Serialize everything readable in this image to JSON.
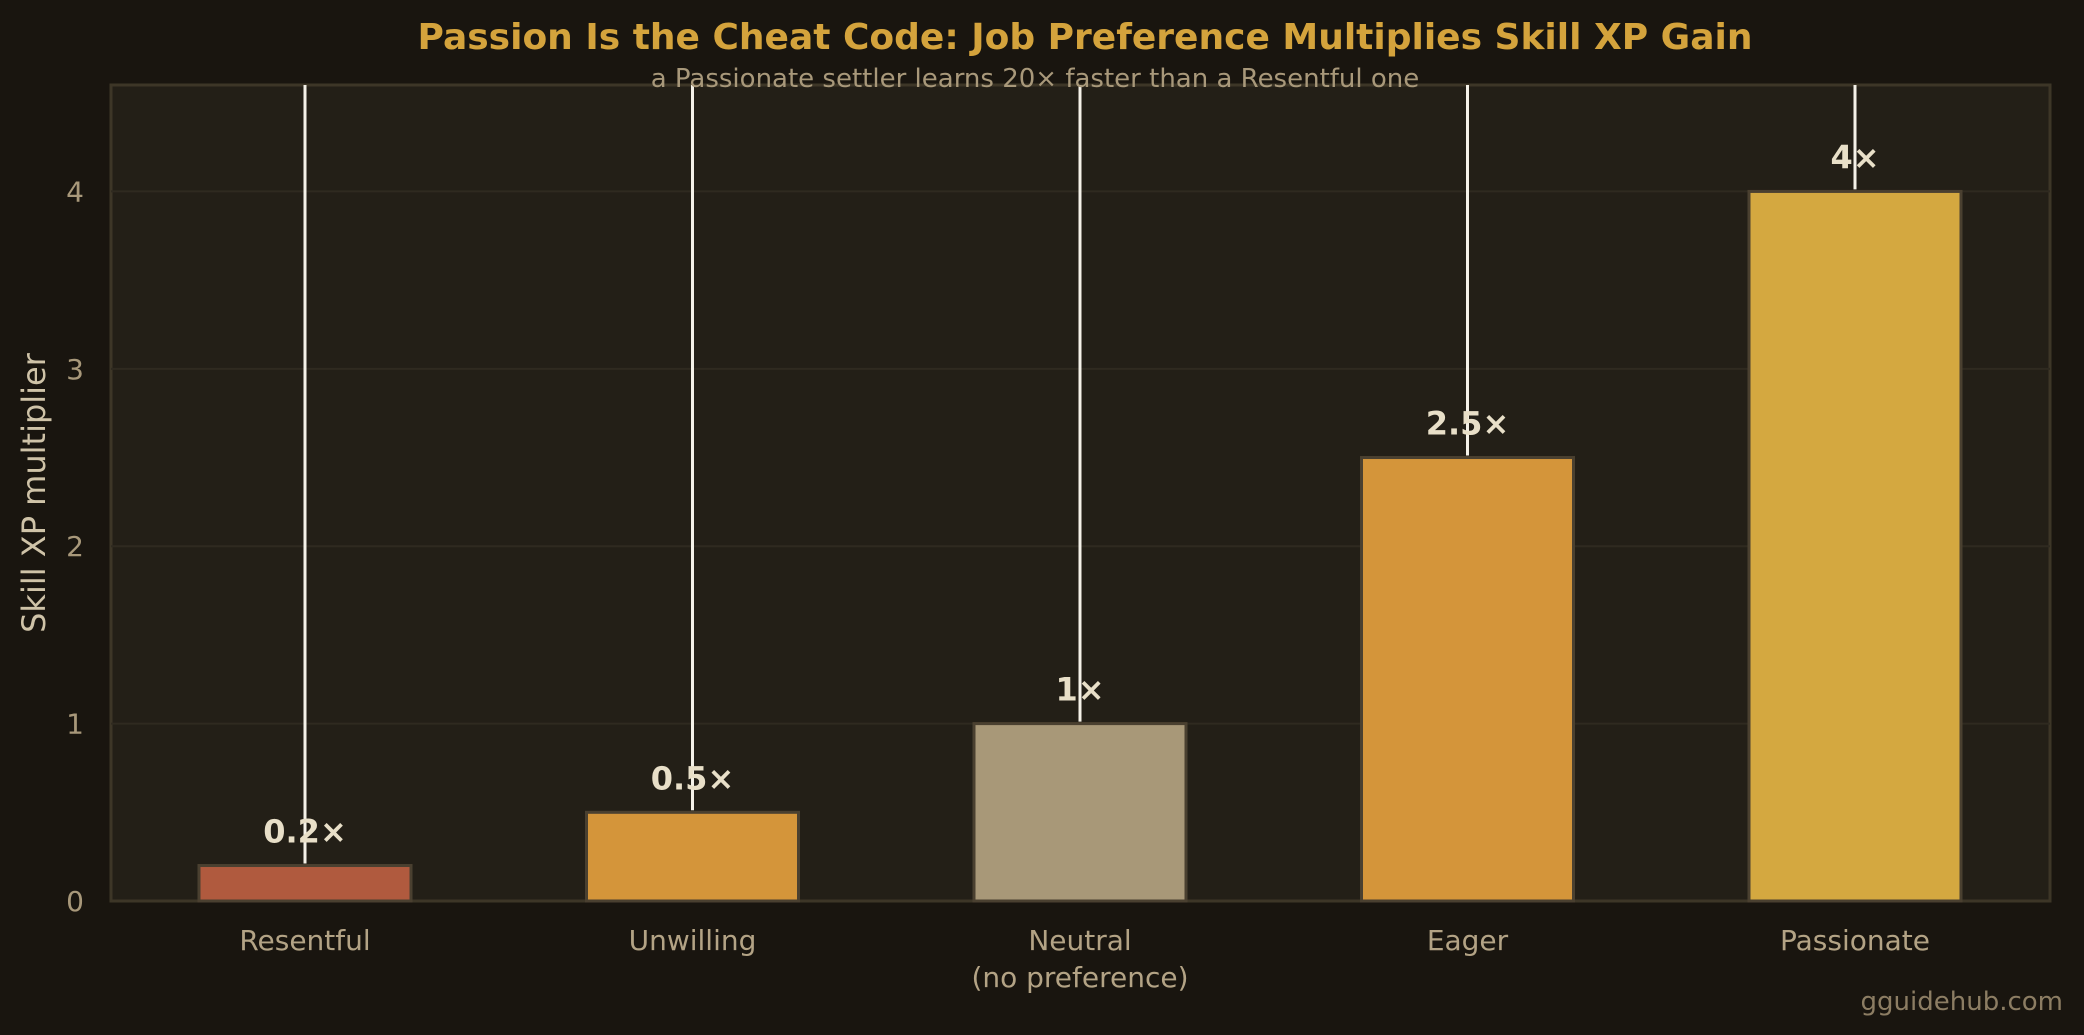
{
  "chart_data": {
    "type": "bar",
    "title": "Passion Is the Cheat Code: Job Preference Multiplies Skill XP Gain",
    "subtitle": "a Passionate settler learns 20× faster than a Resentful one",
    "ylabel": "Skill XP multiplier",
    "xlabel": "",
    "categories": [
      [
        "Resentful"
      ],
      [
        "Unwilling"
      ],
      [
        "Neutral",
        "(no preference)"
      ],
      [
        "Eager"
      ],
      [
        "Passionate"
      ]
    ],
    "values": [
      0.2,
      0.5,
      1,
      2.5,
      4
    ],
    "data_labels": [
      "0.2×",
      "0.5×",
      "1×",
      "2.5×",
      "4×"
    ],
    "colors": [
      "#b05a3e",
      "#d4953a",
      "#a89878",
      "#d4953a",
      "#d4a840"
    ],
    "ylim": [
      0,
      4.6
    ],
    "yticks": [
      0,
      1,
      2,
      3,
      4
    ],
    "grid": true,
    "legend": "none",
    "background": "#19150f",
    "plot_background": "#231f17",
    "accent": "#d4a33c",
    "watermark": "gguidehub.com"
  }
}
